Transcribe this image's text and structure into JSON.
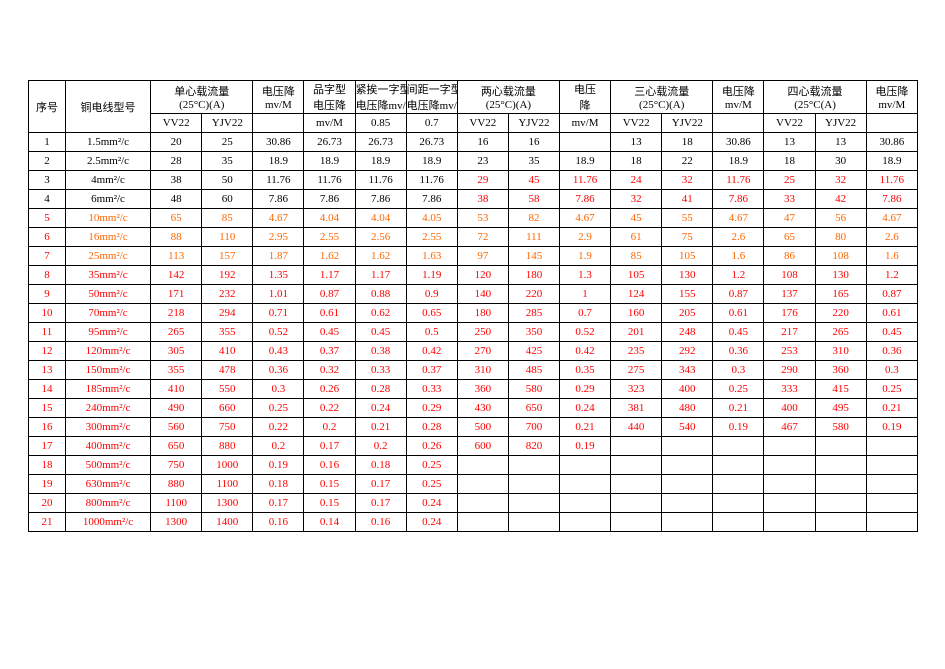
{
  "headers": {
    "idx": "序号",
    "model": "铜电线型号",
    "single_flow": "单心载流量\n(25°C)(A)",
    "voltdrop_single": "电压降\nmv/M",
    "pin_voltdrop": "品字型\n电压降",
    "tight_line_voltdrop": "紧挨一字型\n电压降mv/M",
    "spaced_line_voltdrop": "间距一字型\n电压降mv/M",
    "two_flow": "两心载流量\n(25°C)(A)",
    "voltdrop_two": "电压\n降",
    "three_flow": "三心载流量\n(25°C)(A)",
    "voltdrop_three": "电压降\nmv/M",
    "four_flow": "四心载流量\n(25°C(A)",
    "voltdrop_four": "电压降\nmv/M",
    "sub_vv22": "VV22",
    "sub_yjv22": "YJV22",
    "sub_mvm_note": "mv/M",
    "sub_085": "0.85",
    "sub_07": "0.7",
    "sub_mvm": "mv/M"
  },
  "rows": [
    {
      "idx": "1",
      "model": "1.5mm²/c",
      "a": "20",
      "b": "25",
      "c": "30.86",
      "d": "26.73",
      "e": "26.73",
      "f": "26.73",
      "g": "16",
      "h": "16",
      "i": "",
      "j": "13",
      "k": "18",
      "l": "30.86",
      "m": "13",
      "n": "13",
      "o": "30.86",
      "color": "#000000"
    },
    {
      "idx": "2",
      "model": "2.5mm²/c",
      "a": "28",
      "b": "35",
      "c": "18.9",
      "d": "18.9",
      "e": "18.9",
      "f": "18.9",
      "g": "23",
      "h": "35",
      "i": "18.9",
      "j": "18",
      "k": "22",
      "l": "18.9",
      "m": "18",
      "n": "30",
      "o": "18.9",
      "color": "#000000"
    },
    {
      "idx": "3",
      "model": "4mm²/c",
      "a": "38",
      "b": "50",
      "c": "11.76",
      "d": "11.76",
      "e": "11.76",
      "f": "11.76",
      "g": "29",
      "h": "45",
      "i": "11.76",
      "j": "24",
      "k": "32",
      "l": "11.76",
      "m": "25",
      "n": "32",
      "o": "11.76",
      "color": "#000000",
      "gcolor": "#ff0000"
    },
    {
      "idx": "4",
      "model": "6mm²/c",
      "a": "48",
      "b": "60",
      "c": "7.86",
      "d": "7.86",
      "e": "7.86",
      "f": "7.86",
      "g": "38",
      "h": "58",
      "i": "7.86",
      "j": "32",
      "k": "41",
      "l": "7.86",
      "m": "33",
      "n": "42",
      "o": "7.86",
      "color": "#000000",
      "gcolor": "#ff0000"
    },
    {
      "idx": "5",
      "model": "10mm²/c",
      "a": "65",
      "b": "85",
      "c": "4.67",
      "d": "4.04",
      "e": "4.04",
      "f": "4.05",
      "g": "53",
      "h": "82",
      "i": "4.67",
      "j": "45",
      "k": "55",
      "l": "4.67",
      "m": "47",
      "n": "56",
      "o": "4.67",
      "color": "#ff6600",
      "idxcolor": "#ff0000"
    },
    {
      "idx": "6",
      "model": "16mm²/c",
      "a": "88",
      "b": "110",
      "c": "2.95",
      "d": "2.55",
      "e": "2.56",
      "f": "2.55",
      "g": "72",
      "h": "111",
      "i": "2.9",
      "j": "61",
      "k": "75",
      "l": "2.6",
      "m": "65",
      "n": "80",
      "o": "2.6",
      "color": "#ff6600",
      "idxcolor": "#ff0000"
    },
    {
      "idx": "7",
      "model": "25mm²/c",
      "a": "113",
      "b": "157",
      "c": "1.87",
      "d": "1.62",
      "e": "1.62",
      "f": "1.63",
      "g": "97",
      "h": "145",
      "i": "1.9",
      "j": "85",
      "k": "105",
      "l": "1.6",
      "m": "86",
      "n": "108",
      "o": "1.6",
      "color": "#ff6600",
      "idxcolor": "#ff0000"
    },
    {
      "idx": "8",
      "model": "35mm²/c",
      "a": "142",
      "b": "192",
      "c": "1.35",
      "d": "1.17",
      "e": "1.17",
      "f": "1.19",
      "g": "120",
      "h": "180",
      "i": "1.3",
      "j": "105",
      "k": "130",
      "l": "1.2",
      "m": "108",
      "n": "130",
      "o": "1.2",
      "color": "#ff0000"
    },
    {
      "idx": "9",
      "model": "50mm²/c",
      "a": "171",
      "b": "232",
      "c": "1.01",
      "d": "0.87",
      "e": "0.88",
      "f": "0.9",
      "g": "140",
      "h": "220",
      "i": "1",
      "j": "124",
      "k": "155",
      "l": "0.87",
      "m": "137",
      "n": "165",
      "o": "0.87",
      "color": "#ff0000"
    },
    {
      "idx": "10",
      "model": "70mm²/c",
      "a": "218",
      "b": "294",
      "c": "0.71",
      "d": "0.61",
      "e": "0.62",
      "f": "0.65",
      "g": "180",
      "h": "285",
      "i": "0.7",
      "j": "160",
      "k": "205",
      "l": "0.61",
      "m": "176",
      "n": "220",
      "o": "0.61",
      "color": "#ff0000"
    },
    {
      "idx": "11",
      "model": "95mm²/c",
      "a": "265",
      "b": "355",
      "c": "0.52",
      "d": "0.45",
      "e": "0.45",
      "f": "0.5",
      "g": "250",
      "h": "350",
      "i": "0.52",
      "j": "201",
      "k": "248",
      "l": "0.45",
      "m": "217",
      "n": "265",
      "o": "0.45",
      "color": "#ff0000"
    },
    {
      "idx": "12",
      "model": "120mm²/c",
      "a": "305",
      "b": "410",
      "c": "0.43",
      "d": "0.37",
      "e": "0.38",
      "f": "0.42",
      "g": "270",
      "h": "425",
      "i": "0.42",
      "j": "235",
      "k": "292",
      "l": "0.36",
      "m": "253",
      "n": "310",
      "o": "0.36",
      "color": "#ff0000"
    },
    {
      "idx": "13",
      "model": "150mm²/c",
      "a": "355",
      "b": "478",
      "c": "0.36",
      "d": "0.32",
      "e": "0.33",
      "f": "0.37",
      "g": "310",
      "h": "485",
      "i": "0.35",
      "j": "275",
      "k": "343",
      "l": "0.3",
      "m": "290",
      "n": "360",
      "o": "0.3",
      "color": "#ff0000"
    },
    {
      "idx": "14",
      "model": "185mm²/c",
      "a": "410",
      "b": "550",
      "c": "0.3",
      "d": "0.26",
      "e": "0.28",
      "f": "0.33",
      "g": "360",
      "h": "580",
      "i": "0.29",
      "j": "323",
      "k": "400",
      "l": "0.25",
      "m": "333",
      "n": "415",
      "o": "0.25",
      "color": "#ff0000"
    },
    {
      "idx": "15",
      "model": "240mm²/c",
      "a": "490",
      "b": "660",
      "c": "0.25",
      "d": "0.22",
      "e": "0.24",
      "f": "0.29",
      "g": "430",
      "h": "650",
      "i": "0.24",
      "j": "381",
      "k": "480",
      "l": "0.21",
      "m": "400",
      "n": "495",
      "o": "0.21",
      "color": "#ff0000"
    },
    {
      "idx": "16",
      "model": "300mm²/c",
      "a": "560",
      "b": "750",
      "c": "0.22",
      "d": "0.2",
      "e": "0.21",
      "f": "0.28",
      "g": "500",
      "h": "700",
      "i": "0.21",
      "j": "440",
      "k": "540",
      "l": "0.19",
      "m": "467",
      "n": "580",
      "o": "0.19",
      "color": "#ff0000"
    },
    {
      "idx": "17",
      "model": "400mm²/c",
      "a": "650",
      "b": "880",
      "c": "0.2",
      "d": "0.17",
      "e": "0.2",
      "f": "0.26",
      "g": "600",
      "h": "820",
      "i": "0.19",
      "j": "",
      "k": "",
      "l": "",
      "m": "",
      "n": "",
      "o": "",
      "color": "#ff0000"
    },
    {
      "idx": "18",
      "model": "500mm²/c",
      "a": "750",
      "b": "1000",
      "c": "0.19",
      "d": "0.16",
      "e": "0.18",
      "f": "0.25",
      "g": "",
      "h": "",
      "i": "",
      "j": "",
      "k": "",
      "l": "",
      "m": "",
      "n": "",
      "o": "",
      "color": "#ff0000"
    },
    {
      "idx": "19",
      "model": "630mm²/c",
      "a": "880",
      "b": "1100",
      "c": "0.18",
      "d": "0.15",
      "e": "0.17",
      "f": "0.25",
      "g": "",
      "h": "",
      "i": "",
      "j": "",
      "k": "",
      "l": "",
      "m": "",
      "n": "",
      "o": "",
      "color": "#ff0000"
    },
    {
      "idx": "20",
      "model": "800mm²/c",
      "a": "1100",
      "b": "1300",
      "c": "0.17",
      "d": "0.15",
      "e": "0.17",
      "f": "0.24",
      "g": "",
      "h": "",
      "i": "",
      "j": "",
      "k": "",
      "l": "",
      "m": "",
      "n": "",
      "o": "",
      "color": "#ff0000"
    },
    {
      "idx": "21",
      "model": "1000mm²/c",
      "a": "1300",
      "b": "1400",
      "c": "0.16",
      "d": "0.14",
      "e": "0.16",
      "f": "0.24",
      "g": "",
      "h": "",
      "i": "",
      "j": "",
      "k": "",
      "l": "",
      "m": "",
      "n": "",
      "o": "",
      "color": "#ff0000"
    }
  ]
}
